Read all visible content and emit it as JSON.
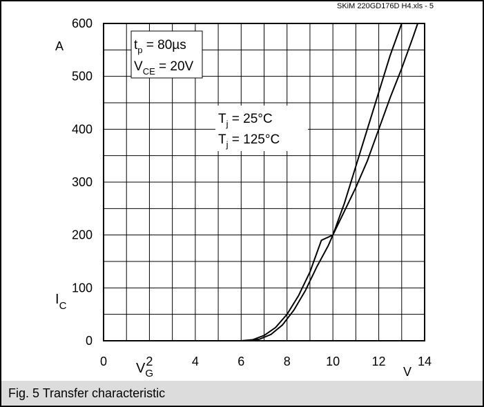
{
  "chart_data": {
    "type": "line",
    "source_tag": "SKiM 220GD176D H4.xls - 5",
    "ylabel": "I",
    "ylabel_sub": "C",
    "yunit": "A",
    "xlabel": "V",
    "xlabel_sub": "G",
    "xunit": "V",
    "xlim": [
      0,
      14
    ],
    "ylim": [
      0,
      600
    ],
    "x_ticks": [
      0,
      2,
      4,
      6,
      8,
      10,
      12,
      14
    ],
    "y_ticks": [
      0,
      100,
      200,
      300,
      400,
      500,
      600
    ],
    "grid": true,
    "annotation_params": {
      "line1_main": "t",
      "line1_sub": "p",
      "line1_rest": " = 80µs",
      "line2_main": "V",
      "line2_sub": "CE",
      "line2_rest": " = 20V"
    },
    "annotation_legend": {
      "line1_main": "T",
      "line1_sub": "j",
      "line1_rest": " = 25°C",
      "line2_main": "T",
      "line2_sub": "j",
      "line2_rest": " = 125°C"
    },
    "series": [
      {
        "x": [
          6.0,
          6.5,
          7.0,
          7.5,
          8.0,
          8.5,
          9.0,
          9.5,
          10.0,
          10.5,
          11.0,
          11.5,
          12.0,
          12.5,
          13.0
        ],
        "y": [
          0,
          2,
          10,
          25,
          50,
          85,
          130,
          190,
          200,
          260,
          330,
          400,
          470,
          540,
          600
        ]
      },
      {
        "x": [
          6.3,
          6.8,
          7.3,
          7.8,
          8.3,
          8.8,
          9.3,
          9.8,
          10.0,
          10.5,
          11.0,
          11.5,
          12.0,
          12.5,
          13.0,
          13.5,
          13.7
        ],
        "y": [
          0,
          3,
          12,
          30,
          58,
          95,
          140,
          180,
          200,
          245,
          290,
          340,
          400,
          460,
          515,
          575,
          600
        ]
      }
    ]
  },
  "caption": "Fig. 5 Transfer characteristic"
}
